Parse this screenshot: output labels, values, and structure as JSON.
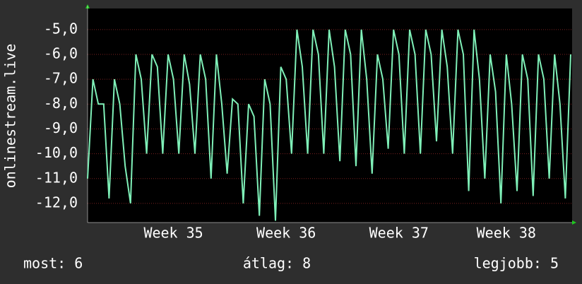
{
  "chart_data": {
    "type": "line",
    "y_label": "onlinestream.live",
    "categories": [
      null,
      null,
      null,
      null,
      null,
      null,
      null,
      null,
      null,
      null,
      null,
      null,
      null,
      null,
      null,
      null,
      "Week 35",
      null,
      null,
      null,
      null,
      null,
      null,
      null,
      null,
      null,
      null,
      null,
      null,
      null,
      null,
      null,
      null,
      null,
      null,
      null,
      null,
      "Week 36",
      null,
      null,
      null,
      null,
      null,
      null,
      null,
      null,
      null,
      null,
      null,
      null,
      null,
      null,
      null,
      null,
      null,
      null,
      null,
      null,
      "Week 37",
      null,
      null,
      null,
      null,
      null,
      null,
      null,
      null,
      null,
      null,
      null,
      null,
      null,
      null,
      null,
      null,
      null,
      null,
      null,
      "Week 38",
      null,
      null,
      null,
      null,
      null,
      null,
      null,
      null,
      null,
      null,
      null,
      null
    ],
    "series": [
      {
        "color": "#7ff0b8",
        "values": [
          -11,
          -7,
          -8,
          -8,
          -11.8,
          -7,
          -8,
          -10.5,
          -12,
          -6,
          -7,
          -10,
          -6,
          -6.5,
          -10,
          -6,
          -7,
          -10,
          -6,
          -7.2,
          -10,
          -6,
          -7,
          -11,
          -6,
          -8,
          -10.8,
          -7.8,
          -8,
          -12,
          -8,
          -8.5,
          -12.5,
          -7,
          -8,
          -12.7,
          -6.5,
          -7,
          -10,
          -5,
          -6.5,
          -10,
          -5,
          -6,
          -10,
          -5,
          -6.5,
          -10.3,
          -5,
          -6,
          -10.5,
          -5,
          -7,
          -10.8,
          -6,
          -7,
          -9.8,
          -5,
          -6,
          -10,
          -5,
          -6,
          -10,
          -5,
          -6,
          -9.5,
          -5,
          -6.5,
          -10,
          -5,
          -6,
          -11.5,
          -5,
          -7,
          -11,
          -6,
          -7.5,
          -12,
          -6,
          -8,
          -11.5,
          -6,
          -7,
          -11.7,
          -6,
          -7,
          -11,
          -6,
          -8,
          -11.8,
          -6
        ]
      }
    ],
    "ylim": [
      -12.77,
      -4.15
    ],
    "yticks": [
      {
        "value": -5,
        "label": "-5,0"
      },
      {
        "value": -6,
        "label": "-6,0"
      },
      {
        "value": -7,
        "label": "-7,0"
      },
      {
        "value": -8,
        "label": "-8,0"
      },
      {
        "value": -9,
        "label": "-9,0"
      },
      {
        "value": -10,
        "label": "-10,0"
      },
      {
        "value": -11,
        "label": "-11,0"
      },
      {
        "value": -12,
        "label": "-12,0"
      }
    ],
    "grid": true,
    "footer": [
      "most: 6",
      "átlag: 8",
      "legjobb: 5"
    ]
  }
}
